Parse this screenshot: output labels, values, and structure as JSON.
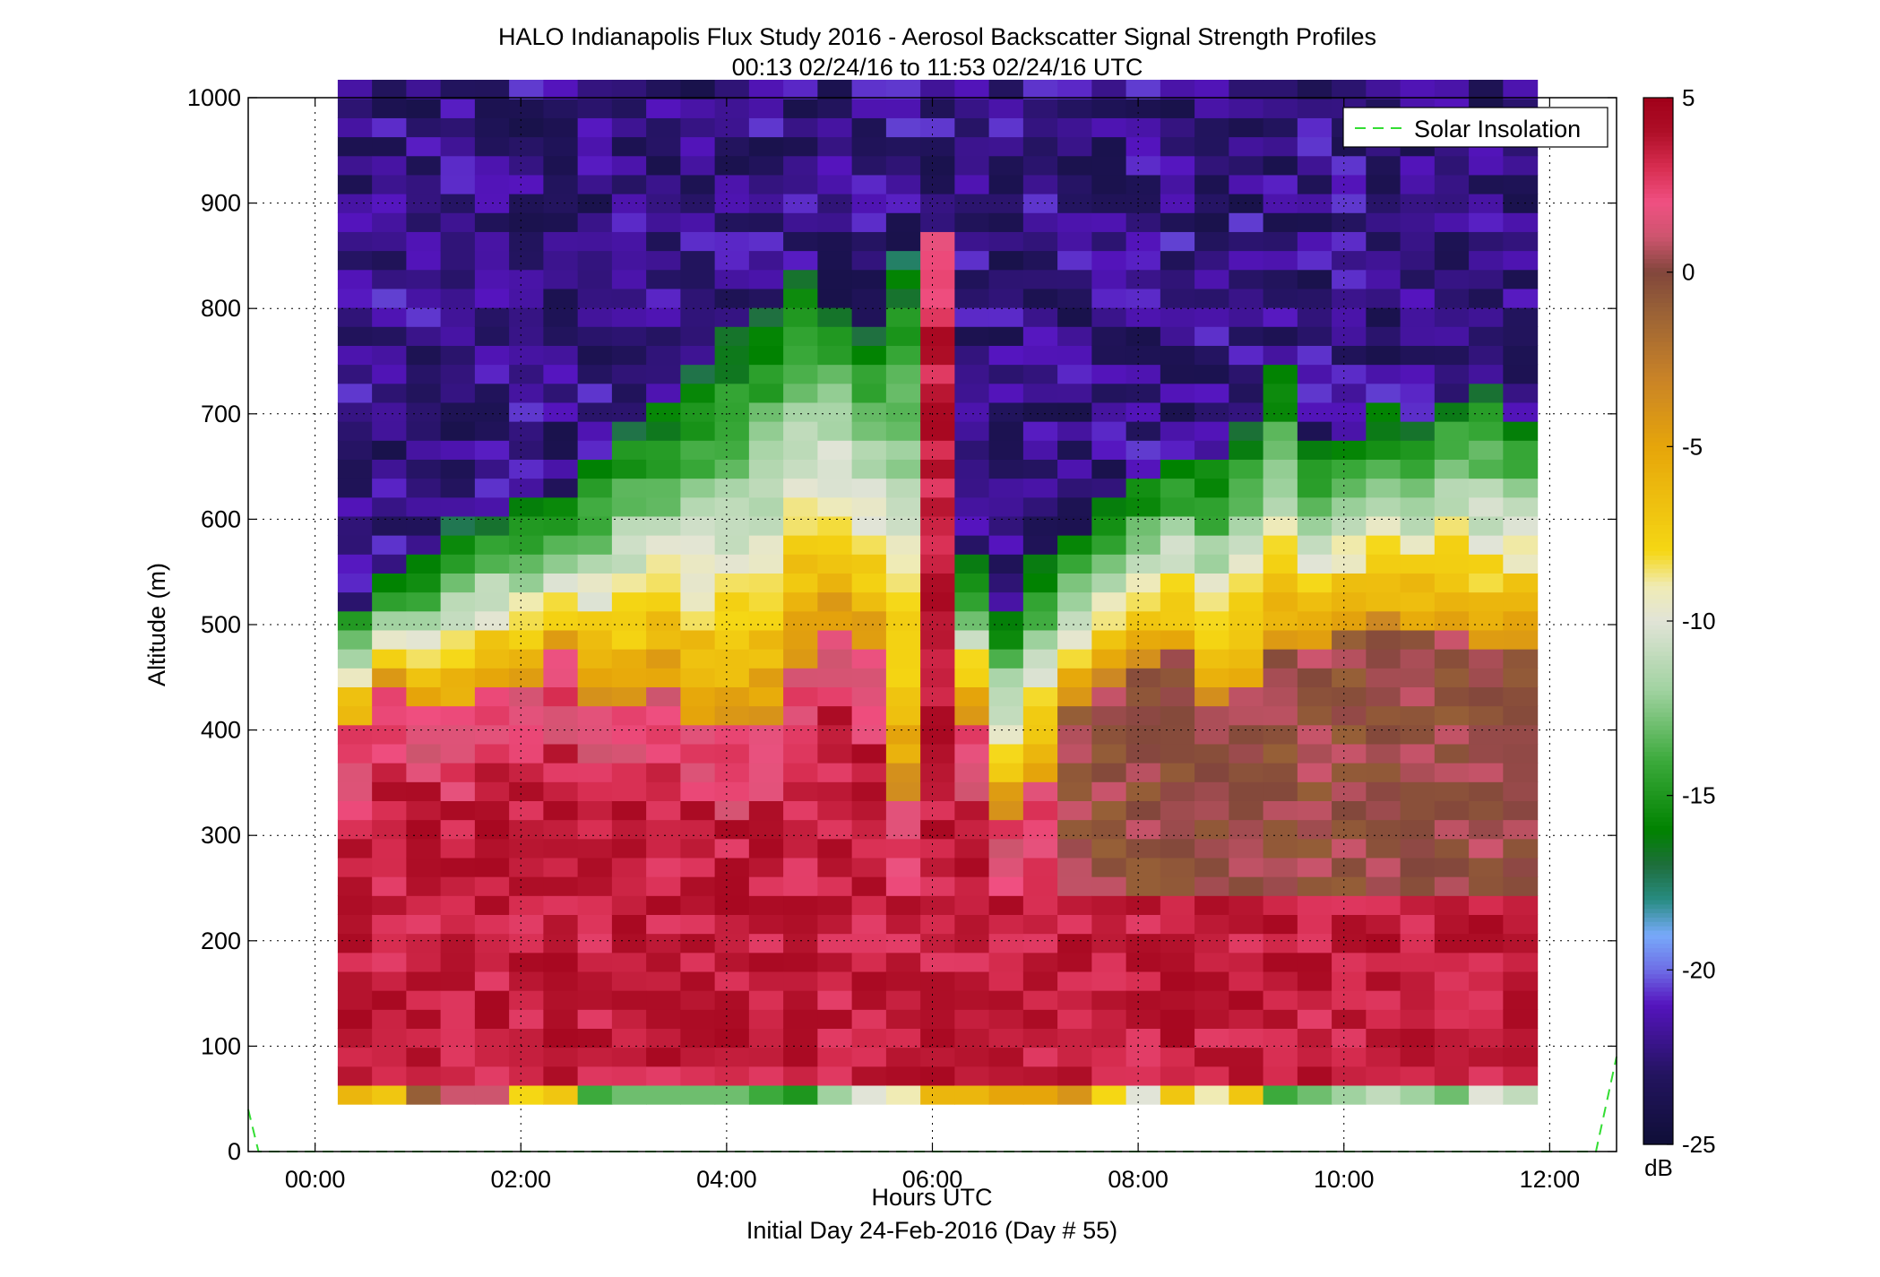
{
  "chart_data": {
    "type": "heatmap",
    "title": "HALO Indianapolis Flux Study 2016 - Aerosol Backscatter Signal Strength Profiles",
    "subtitle": "00:13 02/24/16 to 11:53 02/24/16  UTC",
    "xlabel": "Hours UTC",
    "xlabel2": "Initial Day 24-Feb-2016 (Day # 55)",
    "ylabel": "Altitude (m)",
    "xlim": [
      -0.65,
      12.65
    ],
    "ylim": [
      0,
      1000
    ],
    "x_ticks": [
      0,
      2,
      4,
      6,
      8,
      10,
      12
    ],
    "x_tick_labels": [
      "00:00",
      "02:00",
      "04:00",
      "06:00",
      "08:00",
      "10:00",
      "12:00"
    ],
    "y_ticks": [
      0,
      100,
      200,
      300,
      400,
      500,
      600,
      700,
      800,
      900,
      1000
    ],
    "y_tick_labels": [
      "0",
      "100",
      "200",
      "300",
      "400",
      "500",
      "600",
      "700",
      "800",
      "900",
      "1000"
    ],
    "grid": true,
    "legend": {
      "position": "top-right",
      "entries": [
        "Solar Insolation"
      ]
    },
    "colorbar": {
      "unit": "dB",
      "range": [
        -25,
        5
      ],
      "ticks": [
        5,
        0,
        -5,
        -10,
        -15,
        -20,
        -25
      ],
      "tick_labels": [
        "5",
        "0",
        "-5",
        "-10",
        "-15",
        "-20",
        "-25"
      ]
    },
    "heatmap_x_range_hours": [
      0.22,
      11.88
    ],
    "time_bins": 35,
    "altitude_bins_m": [
      45,
      1000
    ],
    "altitude_bin_size_m": 18,
    "surface_gate_top_m": 63,
    "mixed_layer_top_m": [
      520,
      545,
      560,
      595,
      605,
      615,
      625,
      655,
      700,
      710,
      740,
      780,
      800,
      840,
      810,
      790,
      850,
      560,
      560,
      520,
      565,
      580,
      615,
      640,
      660,
      660,
      690,
      745,
      670,
      680,
      705,
      690,
      720,
      730,
      700
    ],
    "aerosol_layer_top_m": [
      400,
      440,
      425,
      420,
      440,
      445,
      470,
      430,
      420,
      440,
      410,
      400,
      410,
      460,
      500,
      470,
      330,
      880,
      410,
      320,
      360,
      430,
      450,
      460,
      470,
      430,
      435,
      470,
      480,
      490,
      500,
      495,
      500,
      470,
      480
    ],
    "surface_values_db": [
      -6,
      -7,
      -1,
      1,
      1,
      -8,
      -7,
      -14,
      -13,
      -13,
      -13,
      -13,
      -14,
      -15,
      -12,
      -10,
      -9,
      -6,
      -6,
      -5,
      -5,
      -4,
      -8,
      -10,
      -7,
      -9,
      -7,
      -14,
      -13,
      -12,
      -11,
      -12,
      -13,
      -10,
      -11
    ],
    "solar_insolation": {
      "x": [
        -0.65,
        -0.55,
        12.45,
        12.65
      ],
      "y": [
        40,
        0,
        0,
        90
      ]
    }
  }
}
